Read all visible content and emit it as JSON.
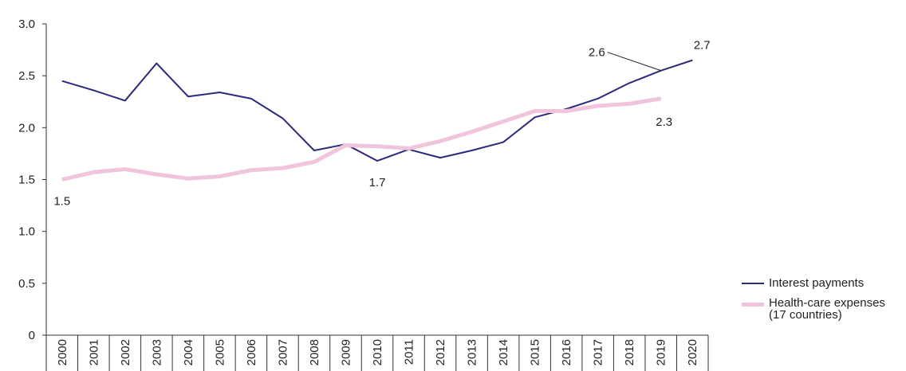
{
  "chart_data": {
    "type": "line",
    "categories": [
      "2000",
      "2001",
      "2002",
      "2003",
      "2004",
      "2005",
      "2006",
      "2007",
      "2008",
      "2009",
      "2010",
      "2011",
      "2012",
      "2013",
      "2014",
      "2015",
      "2016",
      "2017",
      "2018",
      "2019",
      "2020"
    ],
    "series": [
      {
        "name": "Interest payments",
        "color": "#2b2a7a",
        "values": [
          2.45,
          2.36,
          2.26,
          2.62,
          2.3,
          2.34,
          2.28,
          2.09,
          1.78,
          1.84,
          1.68,
          1.79,
          1.71,
          1.78,
          1.86,
          2.1,
          2.18,
          2.28,
          2.43,
          2.55,
          2.65
        ],
        "value_labels": [
          null,
          null,
          null,
          null,
          null,
          null,
          null,
          null,
          null,
          null,
          "1.7",
          null,
          null,
          null,
          null,
          null,
          null,
          null,
          null,
          "2.6",
          "2.7"
        ]
      },
      {
        "name": "Health-care expenses\n(17 countries)",
        "color": "#f0c4dc",
        "values": [
          1.5,
          1.57,
          1.6,
          1.55,
          1.51,
          1.53,
          1.59,
          1.61,
          1.67,
          1.83,
          1.82,
          1.8,
          1.87,
          1.96,
          2.06,
          2.16,
          2.16,
          2.21,
          2.23,
          2.28,
          null
        ],
        "value_labels": [
          "1.5",
          null,
          null,
          null,
          null,
          null,
          null,
          null,
          null,
          null,
          null,
          null,
          null,
          null,
          null,
          null,
          null,
          null,
          null,
          "2.3",
          null
        ]
      }
    ],
    "ylim": [
      0,
      3
    ],
    "yticks": [
      0,
      0.5,
      {
        "value": 1,
        "label": "1.0"
      },
      1.5,
      {
        "value": 2,
        "label": "2.0"
      },
      2.5,
      {
        "value": 3,
        "label": "3.0"
      }
    ],
    "grid": false
  }
}
